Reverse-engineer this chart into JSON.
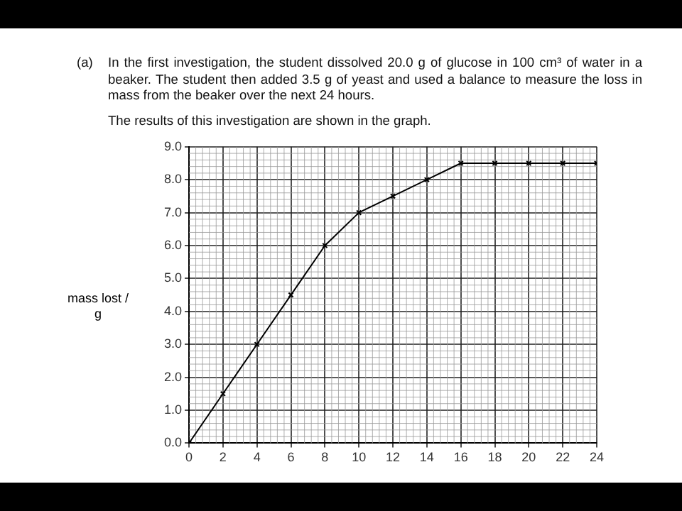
{
  "chart_data": {
    "type": "line",
    "annotations": [
      "(a)",
      "In the first investigation, the student dissolved 20.0 g of glucose in 100 cm³ of water in a beaker. The student then added 3.5 g of yeast and used a balance to measure the loss in mass from the beaker over the next 24 hours.",
      "The results of this investigation are shown in the graph."
    ],
    "ylabel": "mass lost / g",
    "x": [
      0,
      2,
      4,
      6,
      8,
      10,
      12,
      14,
      16,
      18,
      20,
      22,
      24
    ],
    "series": [
      {
        "color": "#000000",
        "values": [
          0,
          1.5,
          3.0,
          4.5,
          6.0,
          7.0,
          7.5,
          8.0,
          8.5,
          8.5,
          8.5,
          8.5,
          8.5
        ]
      }
    ],
    "xlim": [
      0,
      24
    ],
    "xticks": [
      0,
      2,
      4,
      6,
      8,
      10,
      12,
      14,
      16,
      18,
      20,
      22,
      24
    ],
    "ylim": [
      0,
      9
    ],
    "yticks": [
      {
        "value": 0,
        "label": "0.0"
      },
      {
        "value": 1,
        "label": "1.0"
      },
      {
        "value": 2,
        "label": "2.0"
      },
      {
        "value": 3,
        "label": "3.0"
      },
      {
        "value": 4,
        "label": "4.0"
      },
      {
        "value": 5,
        "label": "5.0"
      },
      {
        "value": 6,
        "label": "6.0"
      },
      {
        "value": 7,
        "label": "7.0"
      },
      {
        "value": 8,
        "label": "8.0"
      },
      {
        "value": 9,
        "label": "9.0"
      }
    ],
    "grid": true,
    "legend": false,
    "marker": "cross",
    "line_style": "solid"
  }
}
